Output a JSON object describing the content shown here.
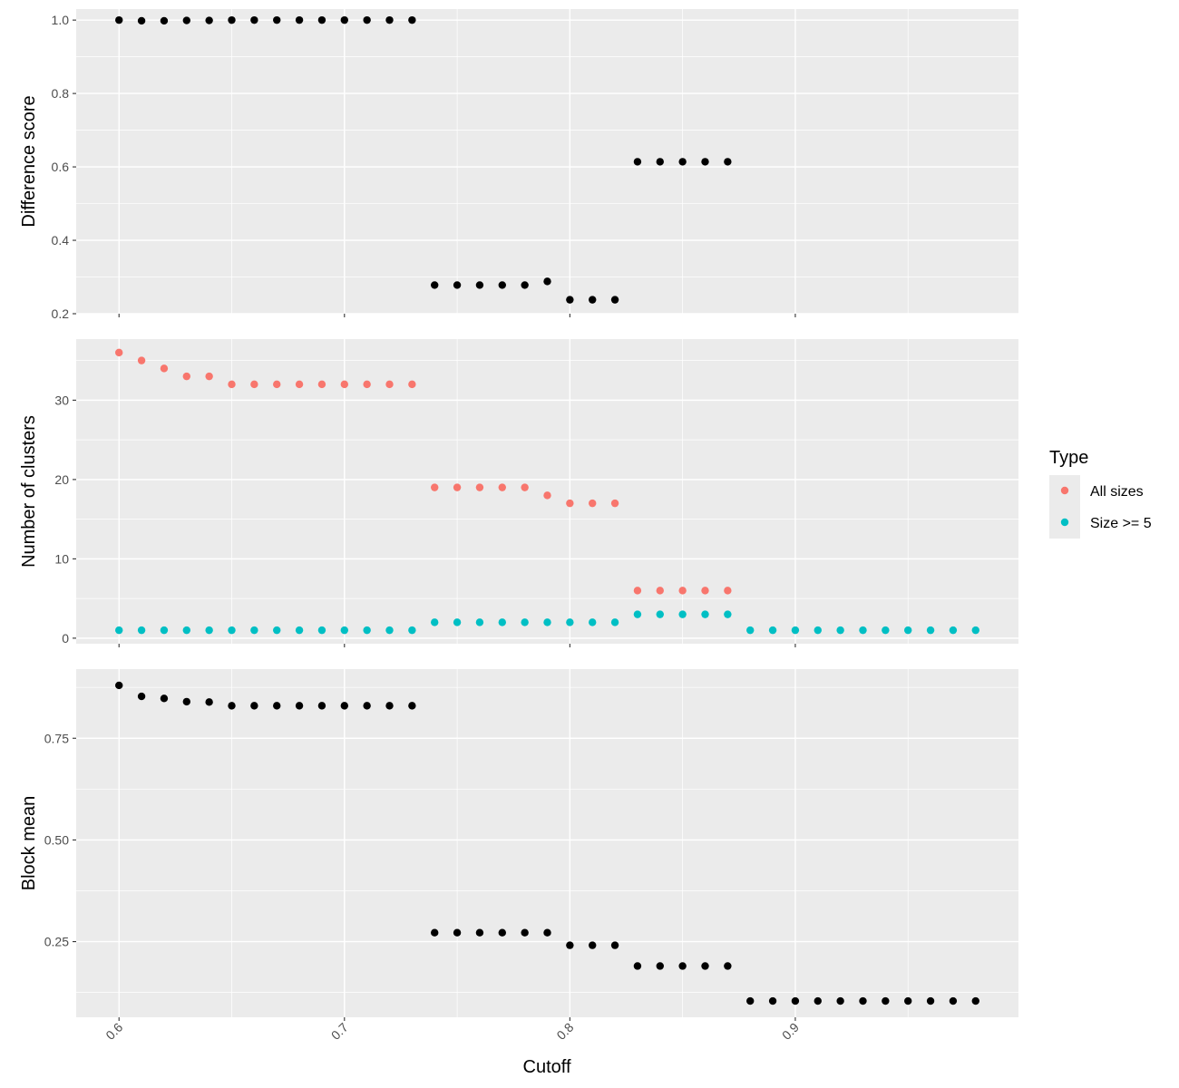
{
  "chart_data": {
    "type": "scatter",
    "xlabel": "Cutoff",
    "x_ticks": [
      0.6,
      0.7,
      0.8,
      0.9
    ],
    "x_tick_labels": [
      "0.6",
      "0.7",
      "0.8",
      "0.9"
    ],
    "xlim": [
      0.581,
      0.999
    ],
    "grid": true,
    "colors": {
      "panel_bg": "#ebebeb",
      "grid": "#ffffff",
      "point": "#000000",
      "tick": "#333333"
    },
    "panels": [
      {
        "ylabel": "Difference score",
        "ylim": [
          0.2,
          1.03
        ],
        "y_ticks": [
          0.2,
          0.4,
          0.6,
          0.8,
          1.0
        ],
        "y_tick_labels": [
          "0.2",
          "0.4",
          "0.6",
          "0.8",
          "1.0"
        ],
        "series": [
          {
            "color": "#000000",
            "x": [
              0.6,
              0.61,
              0.62,
              0.63,
              0.64,
              0.65,
              0.66,
              0.67,
              0.68,
              0.69,
              0.7,
              0.71,
              0.72,
              0.73,
              0.74,
              0.75,
              0.76,
              0.77,
              0.78,
              0.79,
              0.8,
              0.81,
              0.82,
              0.83,
              0.84,
              0.85,
              0.86,
              0.87
            ],
            "y": [
              1.0,
              0.998,
              0.998,
              0.999,
              0.999,
              1.0,
              1.0,
              1.0,
              1.0,
              1.0,
              1.0,
              1.0,
              1.0,
              1.0,
              0.278,
              0.278,
              0.278,
              0.278,
              0.278,
              0.288,
              0.238,
              0.238,
              0.238,
              0.614,
              0.614,
              0.614,
              0.614,
              0.614
            ]
          }
        ]
      },
      {
        "ylabel": "Number of clusters",
        "ylim": [
          -0.7,
          37.7
        ],
        "y_ticks": [
          0,
          10,
          20,
          30
        ],
        "y_tick_labels": [
          "0",
          "10",
          "20",
          "30"
        ],
        "series": [
          {
            "name": "All sizes",
            "color": "#F8766D",
            "x": [
              0.6,
              0.61,
              0.62,
              0.63,
              0.64,
              0.65,
              0.66,
              0.67,
              0.68,
              0.69,
              0.7,
              0.71,
              0.72,
              0.73,
              0.74,
              0.75,
              0.76,
              0.77,
              0.78,
              0.79,
              0.8,
              0.81,
              0.82,
              0.83,
              0.84,
              0.85,
              0.86,
              0.87
            ],
            "y": [
              36,
              35,
              34,
              33,
              33,
              32,
              32,
              32,
              32,
              32,
              32,
              32,
              32,
              32,
              19,
              19,
              19,
              19,
              19,
              18,
              17,
              17,
              17,
              6,
              6,
              6,
              6,
              6
            ]
          },
          {
            "name": "Size >= 5",
            "color": "#00BFC4",
            "x": [
              0.6,
              0.61,
              0.62,
              0.63,
              0.64,
              0.65,
              0.66,
              0.67,
              0.68,
              0.69,
              0.7,
              0.71,
              0.72,
              0.73,
              0.74,
              0.75,
              0.76,
              0.77,
              0.78,
              0.79,
              0.8,
              0.81,
              0.82,
              0.83,
              0.84,
              0.85,
              0.86,
              0.87,
              0.88,
              0.89,
              0.9,
              0.91,
              0.92,
              0.93,
              0.94,
              0.95,
              0.96,
              0.97,
              0.98
            ],
            "y": [
              1,
              1,
              1,
              1,
              1,
              1,
              1,
              1,
              1,
              1,
              1,
              1,
              1,
              1,
              2,
              2,
              2,
              2,
              2,
              2,
              2,
              2,
              2,
              3,
              3,
              3,
              3,
              3,
              1,
              1,
              1,
              1,
              1,
              1,
              1,
              1,
              1,
              1,
              1
            ]
          }
        ]
      },
      {
        "ylabel": "Block mean",
        "ylim": [
          0.064,
          0.92
        ],
        "y_ticks": [
          0.25,
          0.5,
          0.75
        ],
        "y_tick_labels": [
          "0.25",
          "0.50",
          "0.75"
        ],
        "series": [
          {
            "color": "#000000",
            "x": [
              0.6,
              0.61,
              0.62,
              0.63,
              0.64,
              0.65,
              0.66,
              0.67,
              0.68,
              0.69,
              0.7,
              0.71,
              0.72,
              0.73,
              0.74,
              0.75,
              0.76,
              0.77,
              0.78,
              0.79,
              0.8,
              0.81,
              0.82,
              0.83,
              0.84,
              0.85,
              0.86,
              0.87,
              0.88,
              0.89,
              0.9,
              0.91,
              0.92,
              0.93,
              0.94,
              0.95,
              0.96,
              0.97,
              0.98
            ],
            "y": [
              0.88,
              0.853,
              0.848,
              0.84,
              0.839,
              0.83,
              0.83,
              0.83,
              0.83,
              0.83,
              0.83,
              0.83,
              0.83,
              0.83,
              0.272,
              0.272,
              0.272,
              0.272,
              0.272,
              0.272,
              0.241,
              0.241,
              0.241,
              0.19,
              0.19,
              0.19,
              0.19,
              0.19,
              0.104,
              0.104,
              0.104,
              0.104,
              0.104,
              0.104,
              0.104,
              0.104,
              0.104,
              0.104,
              0.104
            ]
          }
        ]
      }
    ],
    "legend": {
      "title": "Type",
      "position": "right",
      "items": [
        {
          "label": "All sizes",
          "color": "#F8766D"
        },
        {
          "label": "Size >= 5",
          "color": "#00BFC4"
        }
      ]
    }
  }
}
